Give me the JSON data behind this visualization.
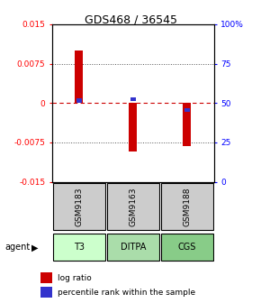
{
  "title": "GDS468 / 36545",
  "samples": [
    "GSM9183",
    "GSM9163",
    "GSM9188"
  ],
  "agents": [
    "T3",
    "DITPA",
    "CGS"
  ],
  "log_ratios": [
    0.01,
    -0.0092,
    -0.0082
  ],
  "percentile_ranks": [
    0.515,
    0.525,
    0.455
  ],
  "ylim_left": [
    -0.015,
    0.015
  ],
  "ylim_right": [
    0.0,
    1.0
  ],
  "yticks_left": [
    -0.015,
    -0.0075,
    0,
    0.0075,
    0.015
  ],
  "ytick_labels_left": [
    "-0.015",
    "-0.0075",
    "0",
    "0.0075",
    "0.015"
  ],
  "yticks_right": [
    0.0,
    0.25,
    0.5,
    0.75,
    1.0
  ],
  "ytick_labels_right": [
    "0",
    "25",
    "50",
    "75",
    "100%"
  ],
  "bar_color": "#cc0000",
  "percentile_color": "#3333cc",
  "agent_colors": [
    "#ccffcc",
    "#aaddaa",
    "#88cc88"
  ],
  "sample_bg_color": "#cccccc",
  "zero_line_color": "#cc0000",
  "bar_width": 0.15
}
